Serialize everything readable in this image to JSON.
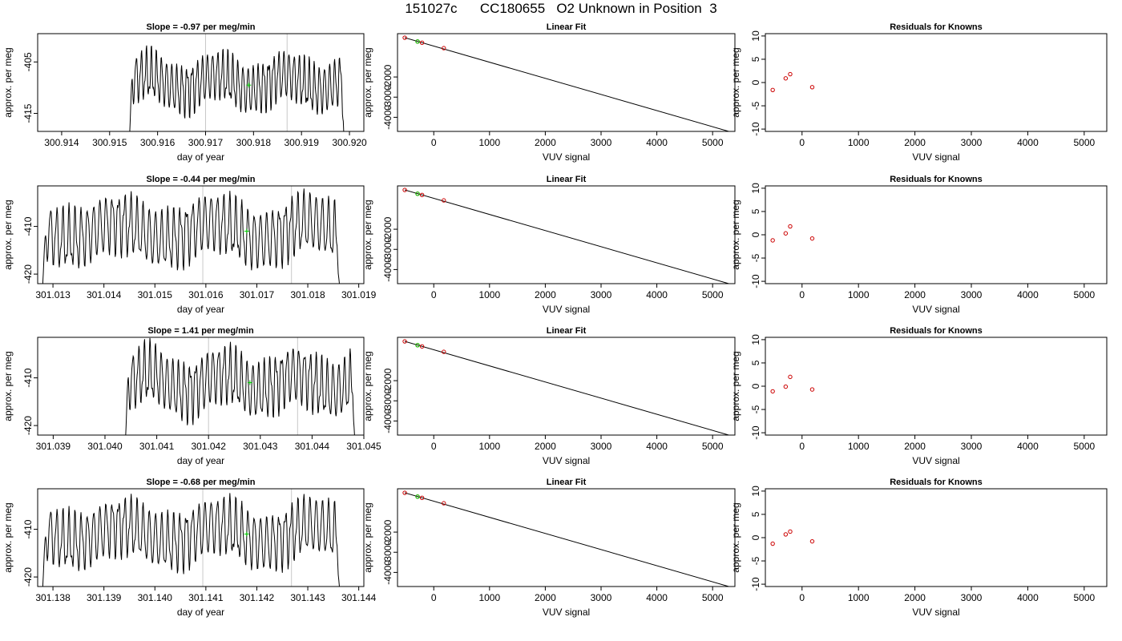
{
  "title": "151027c      CC180655   O2 Unknown in Position  3",
  "chart_data": [
    {
      "panel": "time-series-1",
      "type": "line",
      "title": "Slope =  -0.97  per meg/min",
      "xlabel": "day of year",
      "ylabel": "approx. per meg",
      "xlim": [
        300.9135,
        300.9203
      ],
      "ylim": [
        -418.5,
        -399.5
      ],
      "xticks": [
        "300.914",
        "300.915",
        "300.916",
        "300.917",
        "300.918",
        "300.919",
        "300.920"
      ],
      "yticks": [
        "-405",
        "-415"
      ],
      "ytick_values": [
        -405,
        -415
      ],
      "vlines": [
        300.917,
        300.9187
      ],
      "series_start": 300.91542,
      "series_end": 300.91988,
      "center": -409,
      "amplitude": 4.2,
      "cycles": 42,
      "drop_to": -418.5,
      "marker": {
        "x": 300.9179,
        "y": -409.5,
        "color": "#00cc00"
      }
    },
    {
      "panel": "linear-fit-1",
      "type": "scatter",
      "title": "Linear Fit",
      "xlabel": "VUV signal",
      "ylabel": "approx. per meg",
      "xlim": [
        -650,
        5400
      ],
      "ylim": [
        -4700,
        150
      ],
      "xticks": [
        "0",
        "1000",
        "2000",
        "3000",
        "4000",
        "5000"
      ],
      "yticks": [
        "-2000",
        "-3000",
        "-4000"
      ],
      "line": {
        "x": [
          -520,
          5290
        ],
        "y": [
          -50,
          -4700
        ]
      },
      "points": {
        "x": [
          -520,
          -290,
          -210,
          180
        ],
        "y": [
          -50,
          -240,
          -300,
          -570
        ]
      },
      "green": {
        "x": [
          -290
        ],
        "y": [
          -240
        ]
      }
    },
    {
      "panel": "residuals-1",
      "type": "scatter",
      "title": "Residuals for Knowns",
      "xlabel": "VUV signal",
      "ylabel": "approx. per meg",
      "xlim": [
        -650,
        5400
      ],
      "ylim": [
        -10.5,
        10.5
      ],
      "xticks": [
        "0",
        "1000",
        "2000",
        "3000",
        "4000",
        "5000"
      ],
      "yticks": [
        "-10",
        "-5",
        "0",
        "5",
        "10"
      ],
      "points": {
        "x": [
          -520,
          -290,
          -210,
          180
        ],
        "y": [
          -1.6,
          0.9,
          1.8,
          -1.0
        ]
      }
    },
    {
      "panel": "time-series-2",
      "type": "line",
      "title": "Slope =  -0.44  per meg/min",
      "xlabel": "day of year",
      "ylabel": "approx. per meg",
      "xlim": [
        301.0127,
        301.0191
      ],
      "ylim": [
        -422,
        -401.5
      ],
      "xticks": [
        "301.013",
        "301.014",
        "301.015",
        "301.016",
        "301.017",
        "301.018",
        "301.019"
      ],
      "yticks": [
        "-410",
        "-420"
      ],
      "ytick_values": [
        -410,
        -420
      ],
      "vlines": [
        301.01594,
        301.01768
      ],
      "series_start": 301.0128,
      "series_end": 301.01862,
      "center": -411,
      "amplitude": 5.5,
      "cycles": 48,
      "drop_to": -422,
      "marker": {
        "x": 301.0168,
        "y": -411,
        "color": "#00cc00"
      }
    },
    {
      "panel": "linear-fit-2",
      "type": "scatter",
      "title": "Linear Fit",
      "xlabel": "VUV signal",
      "ylabel": "approx. per meg",
      "xlim": [
        -650,
        5400
      ],
      "ylim": [
        -4700,
        150
      ],
      "xticks": [
        "0",
        "1000",
        "2000",
        "3000",
        "4000",
        "5000"
      ],
      "yticks": [
        "-2000",
        "-3000",
        "-4000"
      ],
      "line": {
        "x": [
          -520,
          5290
        ],
        "y": [
          -50,
          -4700
        ]
      },
      "points": {
        "x": [
          -520,
          -290,
          -210,
          180
        ],
        "y": [
          -50,
          -240,
          -300,
          -570
        ]
      },
      "green": {
        "x": [
          -290
        ],
        "y": [
          -240
        ]
      }
    },
    {
      "panel": "residuals-2",
      "type": "scatter",
      "title": "Residuals for Knowns",
      "xlabel": "VUV signal",
      "ylabel": "approx. per meg",
      "xlim": [
        -650,
        5400
      ],
      "ylim": [
        -10.5,
        10.5
      ],
      "xticks": [
        "0",
        "1000",
        "2000",
        "3000",
        "4000",
        "5000"
      ],
      "yticks": [
        "-10",
        "-5",
        "0",
        "5",
        "10"
      ],
      "points": {
        "x": [
          -520,
          -290,
          -210,
          180
        ],
        "y": [
          -1.2,
          0.3,
          1.8,
          -0.8
        ]
      }
    },
    {
      "panel": "time-series-3",
      "type": "line",
      "title": "Slope =  1.41  per meg/min",
      "xlabel": "day of year",
      "ylabel": "approx. per meg",
      "xlim": [
        301.0387,
        301.045
      ],
      "ylim": [
        -422,
        -401.5
      ],
      "xticks": [
        "301.039",
        "301.040",
        "301.041",
        "301.042",
        "301.043",
        "301.044",
        "301.045"
      ],
      "yticks": [
        "-410",
        "-420"
      ],
      "ytick_values": [
        -410,
        -420
      ],
      "vlines": [
        301.042,
        301.04372
      ],
      "series_start": 301.0404,
      "series_end": 301.04482,
      "center": -411,
      "amplitude": 5.3,
      "cycles": 40,
      "drop_to": -422,
      "marker": {
        "x": 301.0428,
        "y": -411,
        "color": "#00cc00"
      }
    },
    {
      "panel": "linear-fit-3",
      "type": "scatter",
      "title": "Linear Fit",
      "xlabel": "VUV signal",
      "ylabel": "approx. per meg",
      "xlim": [
        -650,
        5400
      ],
      "ylim": [
        -4700,
        150
      ],
      "xticks": [
        "0",
        "1000",
        "2000",
        "3000",
        "4000",
        "5000"
      ],
      "yticks": [
        "-2000",
        "-3000",
        "-4000"
      ],
      "line": {
        "x": [
          -520,
          5290
        ],
        "y": [
          -50,
          -4700
        ]
      },
      "points": {
        "x": [
          -520,
          -290,
          -210,
          180
        ],
        "y": [
          -50,
          -240,
          -300,
          -570
        ]
      },
      "green": {
        "x": [
          -290
        ],
        "y": [
          -240
        ]
      }
    },
    {
      "panel": "residuals-3",
      "type": "scatter",
      "title": "Residuals for Knowns",
      "xlabel": "VUV signal",
      "ylabel": "approx. per meg",
      "xlim": [
        -650,
        5400
      ],
      "ylim": [
        -10.5,
        10.5
      ],
      "xticks": [
        "0",
        "1000",
        "2000",
        "3000",
        "4000",
        "5000"
      ],
      "yticks": [
        "-10",
        "-5",
        "0",
        "5",
        "10"
      ],
      "points": {
        "x": [
          -520,
          -290,
          -210,
          180
        ],
        "y": [
          -1.1,
          -0.1,
          2.0,
          -0.7
        ]
      }
    },
    {
      "panel": "time-series-4",
      "type": "line",
      "title": "Slope =  -0.68  per meg/min",
      "xlabel": "day of year",
      "ylabel": "approx. per meg",
      "xlim": [
        301.1377,
        301.1441
      ],
      "ylim": [
        -422,
        -401.5
      ],
      "xticks": [
        "301.138",
        "301.139",
        "301.140",
        "301.141",
        "301.142",
        "301.143",
        "301.144"
      ],
      "yticks": [
        "-410",
        "-420"
      ],
      "ytick_values": [
        -410,
        -420
      ],
      "vlines": [
        301.14094,
        301.14268
      ],
      "series_start": 301.1378,
      "series_end": 301.14362,
      "center": -411,
      "amplitude": 5.3,
      "cycles": 48,
      "drop_to": -422,
      "marker": {
        "x": 301.1418,
        "y": -411,
        "color": "#00cc00"
      }
    },
    {
      "panel": "linear-fit-4",
      "type": "scatter",
      "title": "Linear Fit",
      "xlabel": "VUV signal",
      "ylabel": "approx. per meg",
      "xlim": [
        -650,
        5400
      ],
      "ylim": [
        -4700,
        150
      ],
      "xticks": [
        "0",
        "1000",
        "2000",
        "3000",
        "4000",
        "5000"
      ],
      "yticks": [
        "-2000",
        "-3000",
        "-4000"
      ],
      "line": {
        "x": [
          -520,
          5290
        ],
        "y": [
          -50,
          -4700
        ]
      },
      "points": {
        "x": [
          -520,
          -290,
          -210,
          180
        ],
        "y": [
          -50,
          -240,
          -300,
          -570
        ]
      },
      "green": {
        "x": [
          -290
        ],
        "y": [
          -240
        ]
      }
    },
    {
      "panel": "residuals-4",
      "type": "scatter",
      "title": "Residuals for Knowns",
      "xlabel": "VUV signal",
      "ylabel": "approx. per meg",
      "xlim": [
        -650,
        5400
      ],
      "ylim": [
        -10.5,
        10.5
      ],
      "xticks": [
        "0",
        "1000",
        "2000",
        "3000",
        "4000",
        "5000"
      ],
      "yticks": [
        "-10",
        "-5",
        "0",
        "5",
        "10"
      ],
      "points": {
        "x": [
          -520,
          -290,
          -210,
          180
        ],
        "y": [
          -1.3,
          0.7,
          1.3,
          -0.8
        ]
      }
    }
  ],
  "colors": {
    "line": "#000000",
    "points": "#cc0000",
    "highlight": "#00cc00",
    "vline": "#c8c8c8"
  }
}
